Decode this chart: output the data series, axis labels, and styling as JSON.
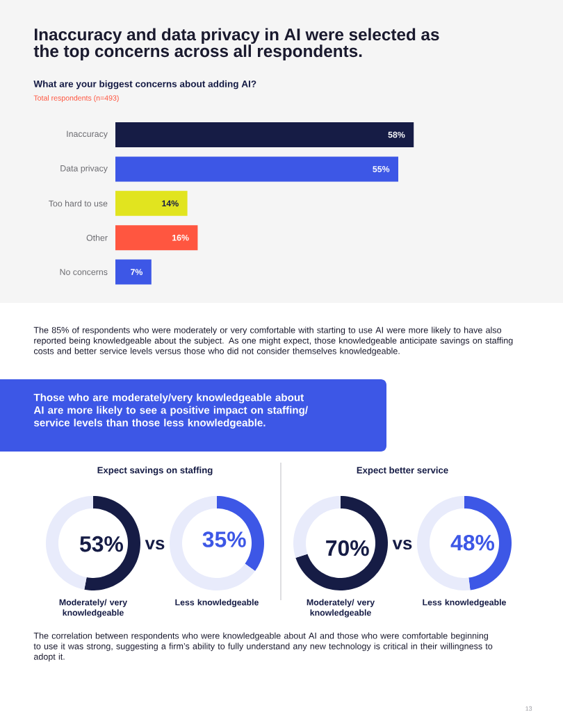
{
  "chart_data": [
    {
      "type": "bar",
      "orientation": "horizontal",
      "title": "Inaccuracy and data privacy in AI were selected as the top concerns across all respondents.",
      "subtitle": "What are your biggest concerns about adding AI?",
      "categories": [
        "Inaccuracy",
        "Data privacy",
        "Too hard to use",
        "Other",
        "No concerns"
      ],
      "values": [
        58,
        55,
        14,
        16,
        7
      ],
      "colors": [
        "#161c45",
        "#3d57e6",
        "#e1e41f",
        "#ff5640",
        "#3d57e6"
      ],
      "value_labels": [
        "58%",
        "55%",
        "14%",
        "16%",
        "7%"
      ],
      "annotations": [
        "Total respondents (n=493)",
        "The 85% of respondents who were moderately or very comfortable with starting to use AI were more likely to have also reported being knowledgeable about the subject. As one might expect, those knowledgeable anticipate savings on staffing costs and better service levels versus those who did not consider themselves knowledgeable.",
        "Those who are moderately/very knowledgeable about AI are more likely to see a positive impact on staffing/ service levels than those less knowledgeable.",
        "The correlation between respondents who were knowledgeable about AI and those who were comfortable beginning to use it was strong, suggesting a firm’s ability to fully understand any new technology is critical in their willingness to adopt it.",
        "13"
      ]
    },
    {
      "type": "donut",
      "title": "Expect savings on staffing",
      "categories": [
        null,
        null
      ],
      "values": [
        53,
        47
      ],
      "colors": [
        "#161c45",
        "#e8ebfb"
      ],
      "value_labels": [
        "53%",
        null
      ],
      "xlabel": "Moderately/ very knowledgeable",
      "annotations": [
        "vs"
      ]
    },
    {
      "type": "donut",
      "categories": [
        null,
        null
      ],
      "values": [
        35,
        65
      ],
      "colors": [
        "#3d57e6",
        "#e8ebfb"
      ],
      "value_labels": [
        "35%",
        null
      ],
      "xlabel": "Less knowledgeable"
    },
    {
      "type": "donut",
      "title": "Expect better service",
      "categories": [
        null,
        null
      ],
      "values": [
        70,
        30
      ],
      "colors": [
        "#161c45",
        "#e8ebfb"
      ],
      "value_labels": [
        "70%",
        null
      ],
      "xlabel": "Moderately/ very knowledgeable",
      "annotations": [
        "vs"
      ]
    },
    {
      "type": "donut",
      "categories": [
        null,
        null
      ],
      "values": [
        48,
        52
      ],
      "colors": [
        "#3d57e6",
        "#e8ebfb"
      ],
      "value_labels": [
        "48%",
        null
      ],
      "xlabel": "Less knowledgeable"
    }
  ]
}
